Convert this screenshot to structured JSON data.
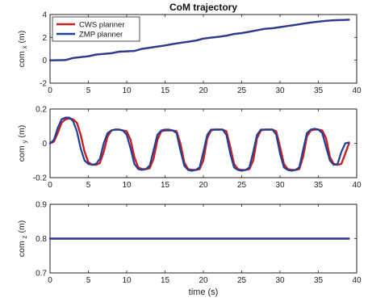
{
  "colors": {
    "cws": "#c8201e",
    "zmp": "#1f3f9a",
    "axis": "#222222"
  },
  "chart_data": [
    {
      "type": "line",
      "title": "CoM trajectory",
      "ylabel_main": "com",
      "ylabel_sub": "x",
      "ylabel_unit": "(m)",
      "xlabel": "",
      "xlim": [
        0,
        40
      ],
      "ylim": [
        -2,
        4
      ],
      "xticks": [
        "0",
        "5",
        "10",
        "15",
        "20",
        "25",
        "30",
        "35",
        "40"
      ],
      "yticks": [
        "-2",
        "0",
        "2",
        "4"
      ],
      "legend": {
        "position": "top-left",
        "entries": [
          "CWS planner",
          "ZMP planner"
        ]
      },
      "series": [
        {
          "name": "CWS planner",
          "color_key": "cws",
          "x": [
            0,
            2,
            3,
            5,
            6,
            8,
            9,
            11,
            12,
            13,
            14,
            15,
            16,
            17,
            18,
            19,
            20,
            21,
            22,
            23,
            24,
            25,
            26,
            27,
            28,
            29,
            30,
            31,
            32,
            33,
            34,
            35,
            36,
            37,
            38,
            39
          ],
          "y": [
            0,
            0.02,
            0.2,
            0.35,
            0.5,
            0.62,
            0.75,
            0.82,
            1.0,
            1.1,
            1.2,
            1.3,
            1.42,
            1.52,
            1.62,
            1.72,
            1.9,
            1.98,
            2.05,
            2.15,
            2.3,
            2.38,
            2.5,
            2.62,
            2.75,
            2.8,
            2.9,
            3.0,
            3.1,
            3.2,
            3.3,
            3.38,
            3.45,
            3.5,
            3.52,
            3.55
          ]
        },
        {
          "name": "ZMP planner",
          "color_key": "zmp",
          "x": [
            0,
            2,
            3,
            5,
            6,
            8,
            9,
            11,
            12,
            13,
            14,
            15,
            16,
            17,
            18,
            19,
            20,
            21,
            22,
            23,
            24,
            25,
            26,
            27,
            28,
            29,
            30,
            31,
            32,
            33,
            34,
            35,
            36,
            37,
            38,
            39
          ],
          "y": [
            0,
            0.02,
            0.2,
            0.35,
            0.5,
            0.62,
            0.75,
            0.82,
            1.0,
            1.1,
            1.2,
            1.3,
            1.42,
            1.52,
            1.62,
            1.72,
            1.9,
            1.98,
            2.05,
            2.15,
            2.3,
            2.38,
            2.5,
            2.62,
            2.75,
            2.8,
            2.9,
            3.0,
            3.1,
            3.2,
            3.3,
            3.38,
            3.45,
            3.5,
            3.52,
            3.55
          ]
        }
      ]
    },
    {
      "type": "line",
      "title": "",
      "ylabel_main": "com",
      "ylabel_sub": "y",
      "ylabel_unit": "(m)",
      "xlabel": "",
      "xlim": [
        0,
        40
      ],
      "ylim": [
        -0.2,
        0.2
      ],
      "xticks": [
        "0",
        "5",
        "10",
        "15",
        "20",
        "25",
        "30",
        "35",
        "40"
      ],
      "yticks": [
        "-0.2",
        "0",
        "0.2"
      ],
      "series": [
        {
          "name": "CWS planner",
          "color_key": "cws",
          "x": [
            0,
            0.5,
            1,
            1.5,
            2,
            2.5,
            3,
            3.5,
            4,
            4.5,
            5,
            5.5,
            6,
            6.5,
            7,
            7.5,
            8,
            8.5,
            9,
            9.5,
            10,
            10.5,
            11,
            11.5,
            12,
            12.5,
            13,
            13.5,
            14,
            14.5,
            15,
            15.5,
            16,
            16.5,
            17,
            17.5,
            18,
            18.5,
            19,
            19.5,
            20,
            20.5,
            21,
            21.5,
            22,
            22.5,
            23,
            23.5,
            24,
            24.5,
            25,
            25.5,
            26,
            26.5,
            27,
            27.5,
            28,
            28.5,
            29,
            29.5,
            30,
            30.5,
            31,
            31.5,
            32,
            32.5,
            33,
            33.5,
            34,
            34.5,
            35,
            35.5,
            36,
            36.5,
            37,
            37.5,
            38,
            38.5,
            39
          ],
          "y": [
            0,
            0.01,
            0.06,
            0.12,
            0.14,
            0.145,
            0.14,
            0.12,
            0.05,
            -0.05,
            -0.11,
            -0.125,
            -0.125,
            -0.115,
            -0.05,
            0.04,
            0.075,
            0.08,
            0.08,
            0.075,
            0.07,
            0.02,
            -0.08,
            -0.14,
            -0.15,
            -0.15,
            -0.145,
            -0.09,
            0.02,
            0.07,
            0.075,
            0.075,
            0.075,
            0.07,
            0.0,
            -0.11,
            -0.15,
            -0.155,
            -0.155,
            -0.15,
            -0.1,
            0.03,
            0.075,
            0.08,
            0.08,
            0.08,
            0.07,
            -0.02,
            -0.12,
            -0.15,
            -0.155,
            -0.155,
            -0.15,
            -0.1,
            0.03,
            0.075,
            0.08,
            0.08,
            0.08,
            0.07,
            -0.02,
            -0.12,
            -0.15,
            -0.155,
            -0.155,
            -0.15,
            -0.08,
            0.04,
            0.075,
            0.08,
            0.08,
            0.075,
            0.03,
            -0.08,
            -0.12,
            -0.125,
            -0.12,
            -0.06,
            0.0
          ]
        },
        {
          "name": "ZMP planner",
          "color_key": "zmp",
          "x": [
            0,
            0.5,
            1,
            1.5,
            2,
            2.5,
            3,
            3.5,
            4,
            4.5,
            5,
            5.5,
            6,
            6.5,
            7,
            7.5,
            8,
            8.5,
            9,
            9.5,
            10,
            10.5,
            11,
            11.5,
            12,
            12.5,
            13,
            13.5,
            14,
            14.5,
            15,
            15.5,
            16,
            16.5,
            17,
            17.5,
            18,
            18.5,
            19,
            19.5,
            20,
            20.5,
            21,
            21.5,
            22,
            22.5,
            23,
            23.5,
            24,
            24.5,
            25,
            25.5,
            26,
            26.5,
            27,
            27.5,
            28,
            28.5,
            29,
            29.5,
            30,
            30.5,
            31,
            31.5,
            32,
            32.5,
            33,
            33.5,
            34,
            34.5,
            35,
            35.5,
            36,
            36.5,
            37,
            37.5,
            38,
            38.5,
            39
          ],
          "y": [
            0,
            0.02,
            0.09,
            0.14,
            0.15,
            0.15,
            0.13,
            0.07,
            -0.03,
            -0.1,
            -0.12,
            -0.125,
            -0.12,
            -0.09,
            0.0,
            0.06,
            0.075,
            0.08,
            0.08,
            0.075,
            0.05,
            -0.03,
            -0.12,
            -0.15,
            -0.155,
            -0.15,
            -0.13,
            -0.04,
            0.05,
            0.075,
            0.08,
            0.08,
            0.075,
            0.06,
            -0.04,
            -0.13,
            -0.155,
            -0.16,
            -0.155,
            -0.14,
            -0.05,
            0.05,
            0.08,
            0.08,
            0.08,
            0.08,
            0.05,
            -0.06,
            -0.14,
            -0.155,
            -0.16,
            -0.155,
            -0.14,
            -0.05,
            0.05,
            0.08,
            0.08,
            0.08,
            0.08,
            0.05,
            -0.06,
            -0.14,
            -0.155,
            -0.16,
            -0.155,
            -0.14,
            -0.04,
            0.06,
            0.08,
            0.085,
            0.08,
            0.06,
            -0.02,
            -0.1,
            -0.125,
            -0.12,
            -0.05,
            0.0,
            0.005
          ]
        }
      ]
    },
    {
      "type": "line",
      "title": "",
      "ylabel_main": "com",
      "ylabel_sub": "z",
      "ylabel_unit": "(m)",
      "xlabel": "time (s)",
      "xlim": [
        0,
        40
      ],
      "ylim": [
        0.7,
        0.9
      ],
      "xticks": [
        "0",
        "5",
        "10",
        "15",
        "20",
        "25",
        "30",
        "35",
        "40"
      ],
      "yticks": [
        "0.7",
        "0.8",
        "0.9"
      ],
      "series": [
        {
          "name": "CWS planner",
          "color_key": "cws",
          "x": [
            0,
            39
          ],
          "y": [
            0.8,
            0.8
          ]
        },
        {
          "name": "ZMP planner",
          "color_key": "zmp",
          "x": [
            0,
            39
          ],
          "y": [
            0.8,
            0.8
          ]
        }
      ]
    }
  ]
}
